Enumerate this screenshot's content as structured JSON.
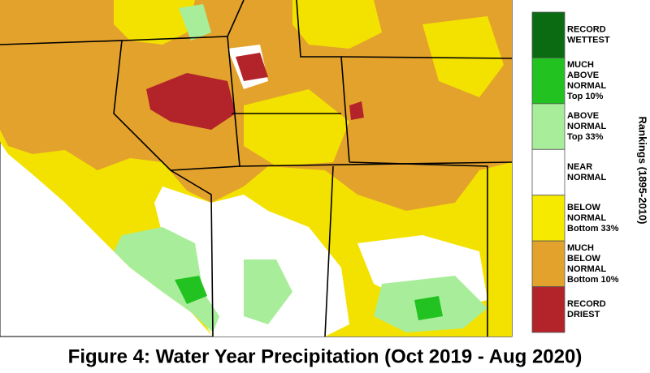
{
  "legend": {
    "title": "Rankings (1895-2010)",
    "items": [
      {
        "lines": [
          "RECORD",
          "WETTEST"
        ],
        "color": "#0b6b12"
      },
      {
        "lines": [
          "MUCH",
          "ABOVE",
          "NORMAL",
          "Top 10%"
        ],
        "color": "#22c321"
      },
      {
        "lines": [
          "ABOVE",
          "NORMAL",
          "Top 33%"
        ],
        "color": "#a8ee9a"
      },
      {
        "lines": [
          "NEAR",
          "NORMAL"
        ],
        "color": "#ffffff"
      },
      {
        "lines": [
          "BELOW",
          "NORMAL",
          "Bottom 33%"
        ],
        "color": "#f5ea00"
      },
      {
        "lines": [
          "MUCH",
          "BELOW",
          "NORMAL",
          "Bottom 10%"
        ],
        "color": "#e3a22c"
      },
      {
        "lines": [
          "RECORD",
          "DRIEST"
        ],
        "color": "#b3232a"
      }
    ]
  },
  "caption": "Figure 4: Water Year Precipitation (Oct 2019 - Aug 2020)"
}
